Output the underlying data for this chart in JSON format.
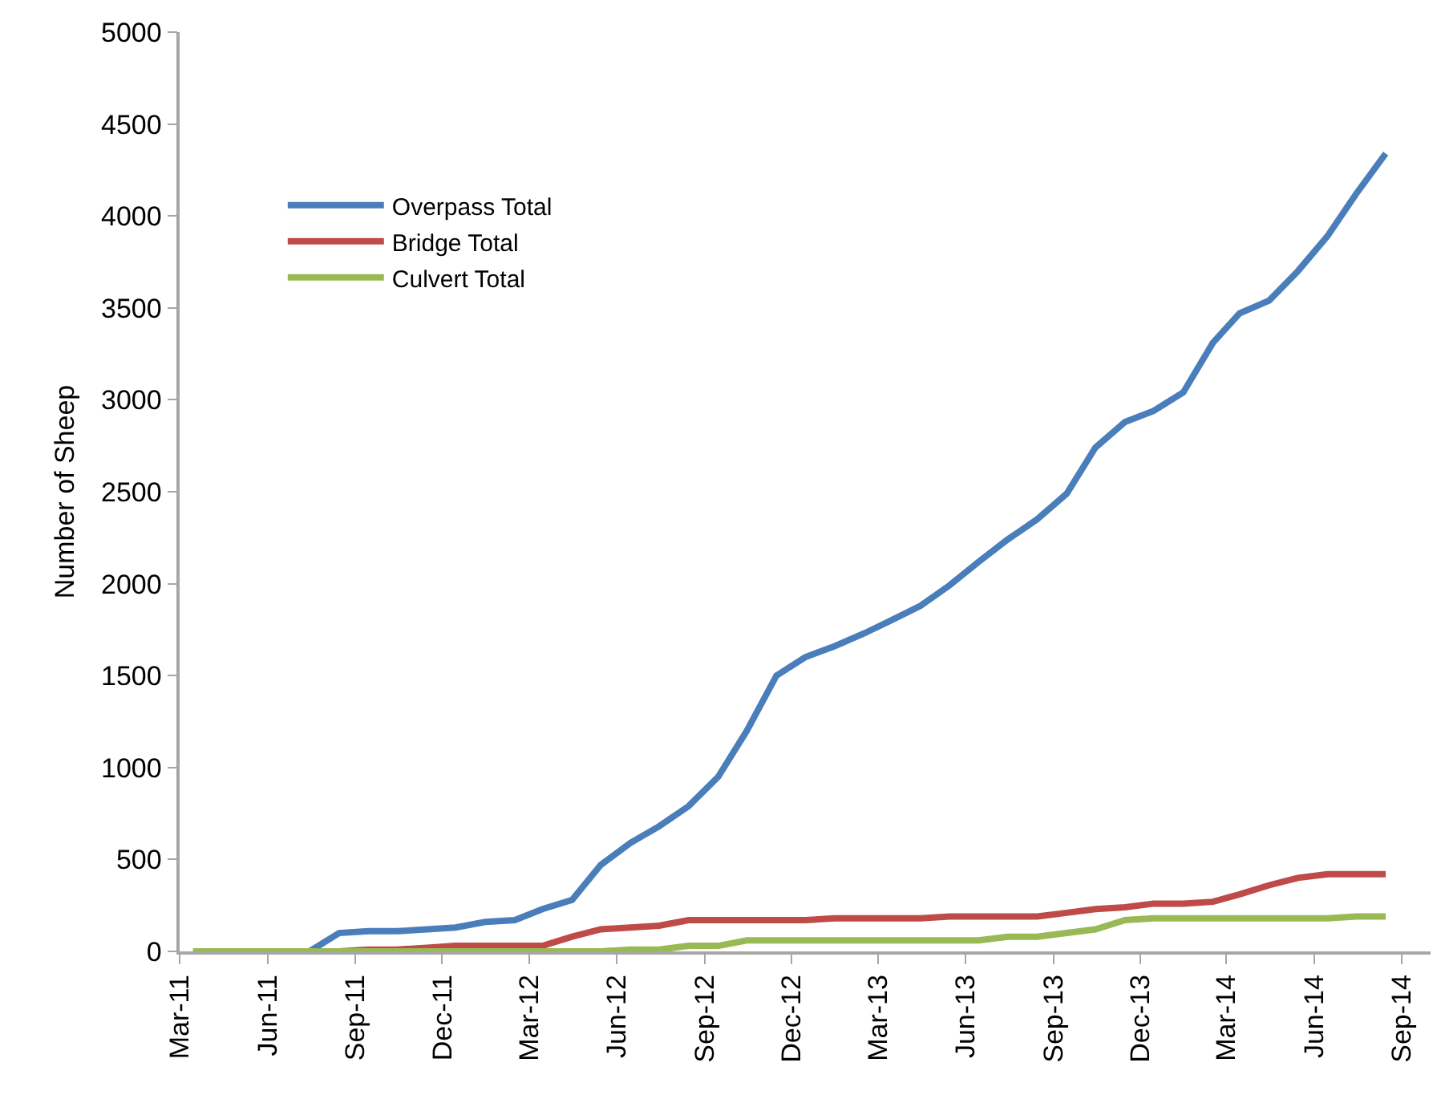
{
  "chart_data": {
    "type": "line",
    "ylabel": "Number of Sheep",
    "x": [
      "2011-03-15",
      "2011-04-15",
      "2011-05-15",
      "2011-06-15",
      "2011-07-15",
      "2011-08-15",
      "2011-09-15",
      "2011-10-15",
      "2011-11-15",
      "2011-12-15",
      "2012-01-15",
      "2012-02-15",
      "2012-03-15",
      "2012-04-15",
      "2012-05-15",
      "2012-06-15",
      "2012-07-15",
      "2012-08-15",
      "2012-09-15",
      "2012-10-15",
      "2012-11-15",
      "2012-12-15",
      "2013-01-15",
      "2013-02-15",
      "2013-03-15",
      "2013-04-15",
      "2013-05-15",
      "2013-06-15",
      "2013-07-15",
      "2013-08-15",
      "2013-09-15",
      "2013-10-15",
      "2013-11-15",
      "2013-12-15",
      "2014-01-15",
      "2014-02-15",
      "2014-03-15",
      "2014-04-15",
      "2014-05-15",
      "2014-06-15",
      "2014-07-15",
      "2014-08-15"
    ],
    "series": [
      {
        "name": "Overpass Total",
        "color": "#4a7ebb",
        "values": [
          null,
          null,
          null,
          0,
          0,
          100,
          110,
          110,
          120,
          130,
          160,
          170,
          230,
          280,
          470,
          590,
          680,
          790,
          950,
          1200,
          1500,
          1600,
          1660,
          1730,
          1800,
          1880,
          1990,
          2120,
          2240,
          2350,
          2490,
          2740,
          2880,
          2940,
          3040,
          3310,
          3470,
          3540,
          3700,
          3890,
          4120,
          4340
        ]
      },
      {
        "name": "Bridge Total",
        "color": "#be4b48",
        "values": [
          null,
          null,
          null,
          0,
          0,
          0,
          10,
          10,
          20,
          30,
          30,
          30,
          30,
          80,
          120,
          130,
          140,
          170,
          170,
          170,
          170,
          170,
          180,
          180,
          180,
          180,
          190,
          190,
          190,
          190,
          210,
          230,
          240,
          260,
          260,
          270,
          310,
          360,
          400,
          420,
          420,
          420
        ]
      },
      {
        "name": "Culvert Total",
        "color": "#98b954",
        "values": [
          0,
          0,
          0,
          0,
          0,
          0,
          0,
          0,
          0,
          0,
          0,
          0,
          0,
          0,
          0,
          10,
          10,
          30,
          30,
          60,
          60,
          60,
          60,
          60,
          60,
          60,
          60,
          60,
          80,
          80,
          100,
          120,
          170,
          180,
          180,
          180,
          180,
          180,
          180,
          180,
          190,
          190
        ]
      }
    ],
    "xlim": [
      "2011-03-01",
      "2014-10-01"
    ],
    "xticks": [
      {
        "value": "2011-03-01",
        "label": "Mar-11"
      },
      {
        "value": "2011-06-01",
        "label": "Jun-11"
      },
      {
        "value": "2011-09-01",
        "label": "Sep-11"
      },
      {
        "value": "2011-12-01",
        "label": "Dec-11"
      },
      {
        "value": "2012-03-01",
        "label": "Mar-12"
      },
      {
        "value": "2012-06-01",
        "label": "Jun-12"
      },
      {
        "value": "2012-09-01",
        "label": "Sep-12"
      },
      {
        "value": "2012-12-01",
        "label": "Dec-12"
      },
      {
        "value": "2013-03-01",
        "label": "Mar-13"
      },
      {
        "value": "2013-06-01",
        "label": "Jun-13"
      },
      {
        "value": "2013-09-01",
        "label": "Sep-13"
      },
      {
        "value": "2013-12-01",
        "label": "Dec-13"
      },
      {
        "value": "2014-03-01",
        "label": "Mar-14"
      },
      {
        "value": "2014-06-01",
        "label": "Jun-14"
      },
      {
        "value": "2014-09-01",
        "label": "Sep-14"
      }
    ],
    "ylim": [
      0,
      5000
    ],
    "yticks": [
      0,
      500,
      1000,
      1500,
      2000,
      2500,
      3000,
      3500,
      4000,
      4500,
      5000
    ],
    "legend": "top left",
    "marker": "none",
    "line_style": "solid"
  }
}
